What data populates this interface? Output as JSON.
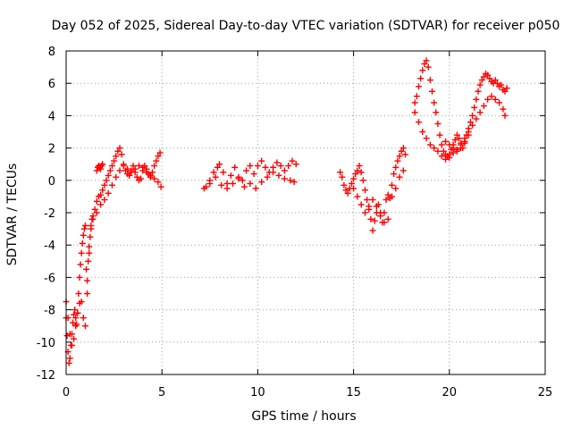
{
  "chart_data": {
    "type": "scatter",
    "title": "Day 052 of 2025, Sidereal Day-to-day VTEC variation (SDTVAR) for receiver p050",
    "xlabel": "GPS time / hours",
    "ylabel": "SDTVAR / TECUs",
    "xlim": [
      0,
      25
    ],
    "ylim": [
      -12,
      8
    ],
    "xticks": [
      0,
      5,
      10,
      15,
      20,
      25
    ],
    "yticks": [
      -12,
      -10,
      -8,
      -6,
      -4,
      -2,
      0,
      2,
      4,
      6,
      8
    ],
    "grid": true,
    "marker": "plus",
    "color": "#ff0000",
    "series": [
      {
        "x": [
          0.0,
          0.05,
          0.1,
          0.15,
          0.2,
          0.25,
          0.3,
          0.35,
          0.4,
          0.45,
          0.5,
          0.55,
          0.6,
          0.65,
          0.7,
          0.75,
          0.8,
          0.85,
          0.9,
          0.95,
          1.0,
          1.05,
          1.1,
          1.15,
          1.2,
          1.25,
          1.3,
          1.35,
          1.4,
          1.5,
          1.6,
          1.7,
          1.8,
          1.9,
          2.0,
          2.1,
          2.2,
          2.3,
          2.4,
          2.5,
          2.6,
          2.7,
          2.8,
          2.9,
          3.0,
          3.1,
          3.2,
          3.3,
          3.4,
          3.5,
          3.6,
          3.7,
          3.8,
          3.9,
          4.0,
          4.1,
          4.2,
          4.3,
          4.4,
          4.5,
          4.6,
          4.7,
          4.8,
          4.9
        ],
        "y": [
          -8.5,
          -9.6,
          -10.6,
          -11.3,
          -11.0,
          -10.2,
          -9.5,
          -8.8,
          -8.3,
          -8.0,
          -8.5,
          -8.9,
          -8.2,
          -7.0,
          -6.0,
          -5.2,
          -4.5,
          -3.9,
          -3.4,
          -3.0,
          -2.8,
          -5.5,
          -6.2,
          -5.0,
          -4.1,
          -3.5,
          -2.8,
          -2.4,
          -2.2,
          -1.8,
          -1.3,
          -1.0,
          -0.9,
          -0.6,
          -0.3,
          0.0,
          0.3,
          0.6,
          0.9,
          1.2,
          1.5,
          1.8,
          2.0,
          1.6,
          1.0,
          0.6,
          0.4,
          0.3,
          0.6,
          0.9,
          0.5,
          0.2,
          0.0,
          0.1,
          0.6,
          0.9,
          0.7,
          0.4,
          0.2,
          0.5,
          0.9,
          1.2,
          1.5,
          1.7
        ]
      },
      {
        "x": [
          0.0,
          0.1,
          0.2,
          0.3,
          0.4,
          0.5,
          0.6,
          0.7,
          0.8,
          0.9,
          1.0,
          1.1,
          1.2,
          1.3,
          1.4,
          1.6,
          1.8,
          2.0,
          2.2,
          2.4,
          2.6,
          2.8,
          3.0,
          3.2,
          3.4,
          3.6,
          3.8,
          4.0,
          4.2,
          4.4,
          4.6,
          4.8,
          4.95
        ],
        "y": [
          -7.5,
          -8.5,
          -9.5,
          -10.2,
          -9.8,
          -9.0,
          -8.2,
          -7.6,
          -7.5,
          -8.5,
          -9.0,
          -7.0,
          -4.5,
          -3.0,
          -2.4,
          -2.0,
          -1.5,
          -1.2,
          -0.8,
          -0.3,
          0.2,
          0.6,
          0.9,
          0.7,
          0.5,
          0.7,
          0.9,
          0.8,
          0.5,
          0.3,
          0.1,
          -0.1,
          -0.4
        ]
      },
      {
        "x": [
          1.6,
          1.65,
          1.7,
          1.75,
          1.8,
          1.85,
          1.9
        ],
        "y": [
          0.6,
          0.8,
          0.9,
          0.8,
          0.7,
          0.9,
          1.0
        ]
      },
      {
        "x": [
          7.3,
          7.5,
          7.7,
          7.9,
          8.0,
          8.2,
          8.4,
          8.6,
          8.8,
          9.0,
          9.2,
          9.4,
          9.6,
          9.8,
          10.0,
          10.2,
          10.4,
          10.6,
          10.8,
          11.0,
          11.2,
          11.4,
          11.6,
          11.8,
          12.0
        ],
        "y": [
          -0.4,
          0.0,
          0.5,
          0.8,
          1.0,
          0.5,
          -0.2,
          0.3,
          0.8,
          0.2,
          0.0,
          0.6,
          0.9,
          0.4,
          0.9,
          1.2,
          0.8,
          0.5,
          0.8,
          1.1,
          0.9,
          0.6,
          0.9,
          1.2,
          1.0
        ]
      },
      {
        "x": [
          7.2,
          7.5,
          7.8,
          8.1,
          8.4,
          8.7,
          9.0,
          9.3,
          9.6,
          9.9,
          10.2,
          10.5,
          10.8,
          11.1,
          11.4,
          11.7,
          11.9
        ],
        "y": [
          -0.5,
          -0.2,
          0.2,
          -0.3,
          -0.5,
          -0.2,
          0.1,
          -0.4,
          -0.2,
          -0.5,
          -0.1,
          0.2,
          0.5,
          0.3,
          0.1,
          0.0,
          -0.1
        ]
      },
      {
        "x": [
          14.3,
          14.4,
          14.5,
          14.6,
          14.7,
          14.8,
          14.9,
          15.0,
          15.1,
          15.2,
          15.3,
          15.4,
          15.5,
          15.6,
          15.7,
          15.8,
          15.9,
          16.0,
          16.1,
          16.2,
          16.3,
          16.4,
          16.5,
          16.6,
          16.7,
          16.8,
          16.9,
          17.0,
          17.1,
          17.2,
          17.3,
          17.4,
          17.5,
          17.6,
          17.7
        ],
        "y": [
          0.5,
          0.2,
          -0.3,
          -0.6,
          -0.8,
          -0.5,
          -0.2,
          0.1,
          0.4,
          0.6,
          0.9,
          0.5,
          0.0,
          -0.6,
          -1.2,
          -1.8,
          -2.4,
          -3.1,
          -2.5,
          -2.0,
          -1.5,
          -2.2,
          -2.6,
          -2.0,
          -1.2,
          -0.9,
          -1.1,
          -0.3,
          0.4,
          0.8,
          1.2,
          1.5,
          1.8,
          2.0,
          1.6
        ]
      },
      {
        "x": [
          15.0,
          15.2,
          15.4,
          15.6,
          15.8,
          16.0,
          16.2,
          16.4,
          16.6,
          16.8,
          17.0,
          17.2,
          17.4,
          17.6
        ],
        "y": [
          -0.5,
          -1.0,
          -1.5,
          -2.0,
          -1.6,
          -1.2,
          -1.6,
          -2.0,
          -2.6,
          -2.4,
          -1.0,
          -0.5,
          0.2,
          0.6
        ]
      },
      {
        "x": [
          18.2,
          18.3,
          18.4,
          18.5,
          18.6,
          18.7,
          18.8,
          18.9,
          19.0,
          19.1,
          19.2,
          19.3,
          19.4,
          19.5,
          19.6,
          19.7,
          19.8,
          19.9,
          20.0,
          20.1,
          20.2,
          20.3,
          20.4,
          20.5,
          20.6,
          20.7,
          20.8,
          20.9,
          21.0,
          21.1,
          21.2,
          21.3,
          21.4,
          21.5,
          21.6,
          21.7,
          21.8,
          21.9,
          22.0,
          22.1,
          22.2,
          22.3,
          22.4,
          22.5,
          22.6,
          22.7,
          22.8,
          22.9,
          23.0
        ],
        "y": [
          4.8,
          5.2,
          5.8,
          6.3,
          6.8,
          7.2,
          7.4,
          7.0,
          6.2,
          5.5,
          4.8,
          4.2,
          3.5,
          2.8,
          2.2,
          1.8,
          1.6,
          1.5,
          1.6,
          1.9,
          2.2,
          2.5,
          2.8,
          2.6,
          2.3,
          2.0,
          2.3,
          2.8,
          3.2,
          3.6,
          4.0,
          4.5,
          5.0,
          5.5,
          5.9,
          6.2,
          6.4,
          6.6,
          6.5,
          6.3,
          6.1,
          6.0,
          6.2,
          6.0,
          5.8,
          5.9,
          5.6,
          5.5,
          5.7
        ]
      },
      {
        "x": [
          18.2,
          18.4,
          18.6,
          18.8,
          19.0,
          19.2,
          19.4,
          19.6,
          19.8,
          20.0,
          20.2,
          20.4,
          20.6,
          20.8,
          21.0,
          21.2,
          21.4,
          21.6,
          21.8,
          22.0,
          22.2,
          22.4,
          22.6,
          22.8,
          22.9
        ],
        "y": [
          4.2,
          3.6,
          3.0,
          2.6,
          2.2,
          2.0,
          1.8,
          1.5,
          1.3,
          1.4,
          1.7,
          1.9,
          2.2,
          2.6,
          3.0,
          3.4,
          3.8,
          4.2,
          4.6,
          5.0,
          5.2,
          5.0,
          4.8,
          4.4,
          4.0
        ]
      },
      {
        "x": [
          19.8,
          20.0,
          20.2,
          20.4,
          20.6,
          20.8,
          21.0
        ],
        "y": [
          2.4,
          2.2,
          2.0,
          1.8,
          2.0,
          2.4,
          2.8
        ]
      }
    ]
  }
}
